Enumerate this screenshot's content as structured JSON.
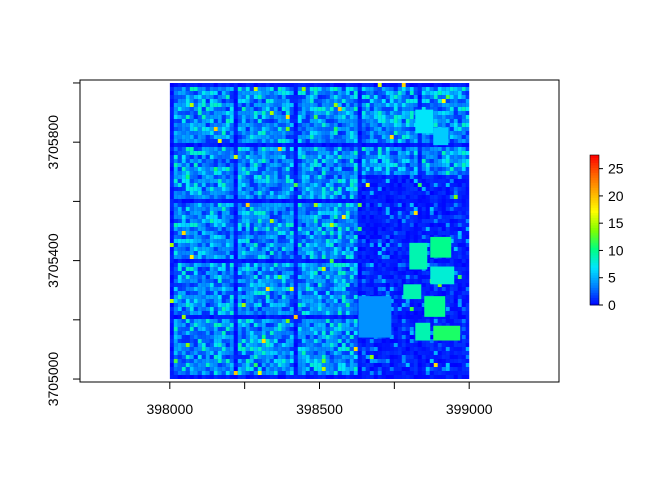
{
  "chart_data": {
    "type": "heatmap",
    "title": "",
    "xlabel": "",
    "ylabel": "",
    "xlim": [
      397700,
      399300
    ],
    "ylim": [
      3704990,
      3706010
    ],
    "raster_extent": {
      "x": [
        398000,
        399000
      ],
      "y": [
        3705000,
        3706000
      ]
    },
    "x_ticks": [
      398000,
      398500,
      399000
    ],
    "x_minor_ticks": [
      398250,
      398750
    ],
    "y_ticks": [
      3705000,
      3705400,
      3705800
    ],
    "y_minor_ticks": [
      3705200,
      3705600,
      3706000
    ],
    "x_tick_labels": [
      "398000",
      "398500",
      "399000"
    ],
    "y_tick_labels": [
      "3705000",
      "3705400",
      "3705800"
    ],
    "legend": {
      "placement": "right",
      "min": 0,
      "max": 27.5,
      "ticks": [
        0,
        5,
        10,
        15,
        20,
        25
      ],
      "tick_labels": [
        "0",
        "5",
        "10",
        "15",
        "20",
        "25"
      ],
      "colors": [
        "#0000ff",
        "#0080ff",
        "#00e5ff",
        "#00ff80",
        "#80ff00",
        "#ffff00",
        "#ffb000",
        "#ff6000",
        "#ff0000"
      ]
    },
    "grid": false
  }
}
